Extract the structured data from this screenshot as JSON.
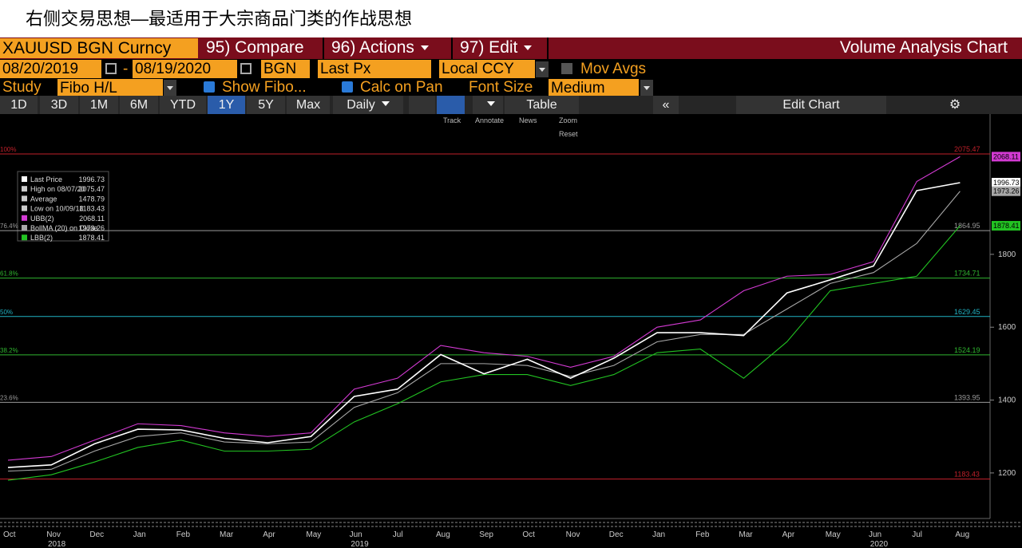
{
  "header": {
    "title": "右侧交易思想—最适用于大宗商品门类的作战思想"
  },
  "toolbar": {
    "security": "XAUUSD BGN Curncy",
    "menus": [
      "95) Compare",
      "96) Actions",
      "97) Edit"
    ],
    "chart_name": "Volume Analysis Chart"
  },
  "settings": {
    "start_date": "08/20/2019",
    "dash": "-",
    "end_date": "08/19/2020",
    "source": "BGN",
    "field": "Last Px",
    "currency": "Local CCY",
    "mov_avgs": "Mov Avgs",
    "study_label": "Study",
    "study": "Fibo H/L",
    "show_fibo": "Show Fibo...",
    "calc_on_pan": "Calc on Pan",
    "font_size_label": "Font Size",
    "font_size": "Medium"
  },
  "tabs": [
    "1D",
    "3D",
    "1M",
    "6M",
    "YTD",
    "1Y",
    "5Y",
    "Max"
  ],
  "active_tab": 5,
  "periodicity": "Daily",
  "table": "Table",
  "edit_chart": "Edit Chart",
  "chart_tools": [
    "Track",
    "Annotate",
    "News",
    "Zoom",
    "Reset"
  ],
  "chart_data": {
    "type": "line",
    "categories": [
      "Oct",
      "Nov",
      "Dec",
      "Jan",
      "Feb",
      "Mar",
      "Apr",
      "May",
      "Jun",
      "Jul",
      "Aug",
      "Sep",
      "Oct",
      "Nov",
      "Dec",
      "Jan",
      "Feb",
      "Mar",
      "Apr",
      "May",
      "Jun",
      "Jul",
      "Aug"
    ],
    "years": [
      {
        "label": "2018",
        "index": 0
      },
      {
        "label": "2019",
        "index": 7
      },
      {
        "label": "2020",
        "index": 19
      }
    ],
    "series": [
      {
        "name": "UBB(2)",
        "color": "#d33ad3",
        "values": [
          1235,
          1245,
          1290,
          1335,
          1330,
          1310,
          1300,
          1310,
          1430,
          1460,
          1550,
          1530,
          1520,
          1490,
          1520,
          1600,
          1620,
          1700,
          1740,
          1745,
          1780,
          2000,
          2068.11
        ]
      },
      {
        "name": "BollMA (20)  on Close",
        "color": "#a8a8a8",
        "values": [
          1205,
          1210,
          1260,
          1300,
          1310,
          1285,
          1280,
          1285,
          1380,
          1420,
          1500,
          1500,
          1495,
          1465,
          1495,
          1560,
          1580,
          1580,
          1650,
          1720,
          1750,
          1830,
          1973.26
        ]
      },
      {
        "name": "LBB(2)",
        "color": "#22c322",
        "values": [
          1180,
          1195,
          1230,
          1270,
          1290,
          1260,
          1260,
          1265,
          1340,
          1390,
          1450,
          1470,
          1470,
          1440,
          1470,
          1530,
          1540,
          1460,
          1560,
          1700,
          1720,
          1740,
          1878.41
        ]
      },
      {
        "name": "Last Price",
        "color": "#ffffff",
        "values": [
          1215,
          1222,
          1280,
          1320,
          1318,
          1295,
          1283,
          1300,
          1410,
          1430,
          1525,
          1472,
          1512,
          1460,
          1515,
          1585,
          1585,
          1577,
          1694,
          1730,
          1768,
          1975,
          1996.73
        ]
      }
    ],
    "ylim": [
      1075,
      2185
    ],
    "yticks": [
      1200,
      1400,
      1600,
      1800
    ],
    "fibo_levels": [
      {
        "label": "100%",
        "value": 2075.47,
        "color": "#c0202a"
      },
      {
        "label": "76.4%",
        "value": 1864.95,
        "color": "#9a9a9a"
      },
      {
        "label": "61.8%",
        "value": 1734.71,
        "color": "#2fb52f"
      },
      {
        "label": "50%",
        "value": 1629.45,
        "color": "#21b3c4"
      },
      {
        "label": "38.2%",
        "value": 1524.19,
        "color": "#2fb52f"
      },
      {
        "label": "23.6%",
        "value": 1393.95,
        "color": "#9a9a9a"
      },
      {
        "value": 1183.43,
        "color": "#c0202a"
      }
    ],
    "legend": [
      {
        "name": "Last Price",
        "value": 1996.73,
        "color": "#ffffff"
      },
      {
        "name": "High on 08/07/20",
        "value": 2075.47,
        "color": "#cccccc"
      },
      {
        "name": "Average",
        "value": 1478.79,
        "color": "#cccccc"
      },
      {
        "name": "Low on 10/09/18",
        "value": 1183.43,
        "color": "#cccccc"
      },
      {
        "name": "UBB(2)",
        "value": 2068.11,
        "color": "#d33ad3"
      },
      {
        "name": "BollMA (20)  on Close",
        "value": 1973.26,
        "color": "#a8a8a8"
      },
      {
        "name": "LBB(2)",
        "value": 1878.41,
        "color": "#22c322"
      }
    ],
    "last_tags": [
      {
        "value": 2068.11,
        "color": "#d33ad3"
      },
      {
        "value": 1996.73,
        "color": "#ffffff"
      },
      {
        "value": 1973.26,
        "color": "#a8a8a8"
      },
      {
        "value": 1878.41,
        "color": "#22c322"
      }
    ]
  }
}
